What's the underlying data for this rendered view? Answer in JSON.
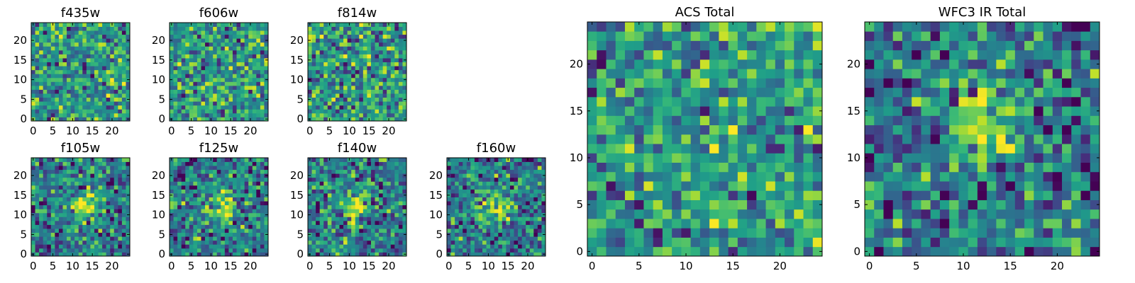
{
  "figure": {
    "colormap": "viridis",
    "colormap_colors": [
      "#440154",
      "#3b528b",
      "#21918c",
      "#5ec962",
      "#fde725"
    ],
    "frame_color": "#000000",
    "background": "#ffffff"
  },
  "chart_data": [
    {
      "id": "f435w",
      "type": "heatmap",
      "title": "f435w",
      "grid_size": 25,
      "seed": 11,
      "xticks": [
        0,
        5,
        10,
        15,
        20
      ],
      "yticks": [
        0,
        5,
        10,
        15,
        20
      ],
      "xlim": [
        0,
        24
      ],
      "ylim": [
        0,
        24
      ],
      "bright_source": false
    },
    {
      "id": "f606w",
      "type": "heatmap",
      "title": "f606w",
      "grid_size": 25,
      "seed": 23,
      "xticks": [
        0,
        5,
        10,
        15,
        20
      ],
      "yticks": [
        0,
        5,
        10,
        15,
        20
      ],
      "xlim": [
        0,
        24
      ],
      "ylim": [
        0,
        24
      ],
      "bright_source": false
    },
    {
      "id": "f814w",
      "type": "heatmap",
      "title": "f814w",
      "grid_size": 25,
      "seed": 37,
      "xticks": [
        0,
        5,
        10,
        15,
        20
      ],
      "yticks": [
        0,
        5,
        10,
        15,
        20
      ],
      "xlim": [
        0,
        24
      ],
      "ylim": [
        0,
        24
      ],
      "bright_source": false
    },
    {
      "id": "f105w",
      "type": "heatmap",
      "title": "f105w",
      "grid_size": 25,
      "seed": 41,
      "xticks": [
        0,
        5,
        10,
        15,
        20
      ],
      "yticks": [
        0,
        5,
        10,
        15,
        20
      ],
      "xlim": [
        0,
        24
      ],
      "ylim": [
        0,
        24
      ],
      "bright_source": true,
      "source_center": [
        13,
        12
      ]
    },
    {
      "id": "f125w",
      "type": "heatmap",
      "title": "f125w",
      "grid_size": 25,
      "seed": 53,
      "xticks": [
        0,
        5,
        10,
        15,
        20
      ],
      "yticks": [
        0,
        5,
        10,
        15,
        20
      ],
      "xlim": [
        0,
        24
      ],
      "ylim": [
        0,
        24
      ],
      "bright_source": true,
      "source_center": [
        13,
        12
      ]
    },
    {
      "id": "f140w",
      "type": "heatmap",
      "title": "f140w",
      "grid_size": 25,
      "seed": 67,
      "xticks": [
        0,
        5,
        10,
        15,
        20
      ],
      "yticks": [
        0,
        5,
        10,
        15,
        20
      ],
      "xlim": [
        0,
        24
      ],
      "ylim": [
        0,
        24
      ],
      "bright_source": true,
      "source_center": [
        11,
        12
      ]
    },
    {
      "id": "f160w",
      "type": "heatmap",
      "title": "f160w",
      "grid_size": 25,
      "seed": 79,
      "xticks": [
        0,
        5,
        10,
        15,
        20
      ],
      "yticks": [
        0,
        5,
        10,
        15,
        20
      ],
      "xlim": [
        0,
        24
      ],
      "ylim": [
        0,
        24
      ],
      "bright_source": true,
      "source_center": [
        12,
        12
      ]
    },
    {
      "id": "acs_total",
      "type": "heatmap",
      "title": "ACS Total",
      "grid_size": 25,
      "seed": 89,
      "xticks": [
        0,
        5,
        10,
        15,
        20
      ],
      "yticks": [
        0,
        5,
        10,
        15,
        20
      ],
      "xlim": [
        0,
        24
      ],
      "ylim": [
        0,
        24
      ],
      "bright_source": false
    },
    {
      "id": "wfc3_ir_total",
      "type": "heatmap",
      "title": "WFC3 IR Total",
      "grid_size": 25,
      "seed": 97,
      "xticks": [
        0,
        5,
        10,
        15,
        20
      ],
      "yticks": [
        0,
        5,
        10,
        15,
        20
      ],
      "xlim": [
        0,
        24
      ],
      "ylim": [
        0,
        24
      ],
      "bright_source": true,
      "source_center": [
        12,
        13
      ]
    }
  ]
}
